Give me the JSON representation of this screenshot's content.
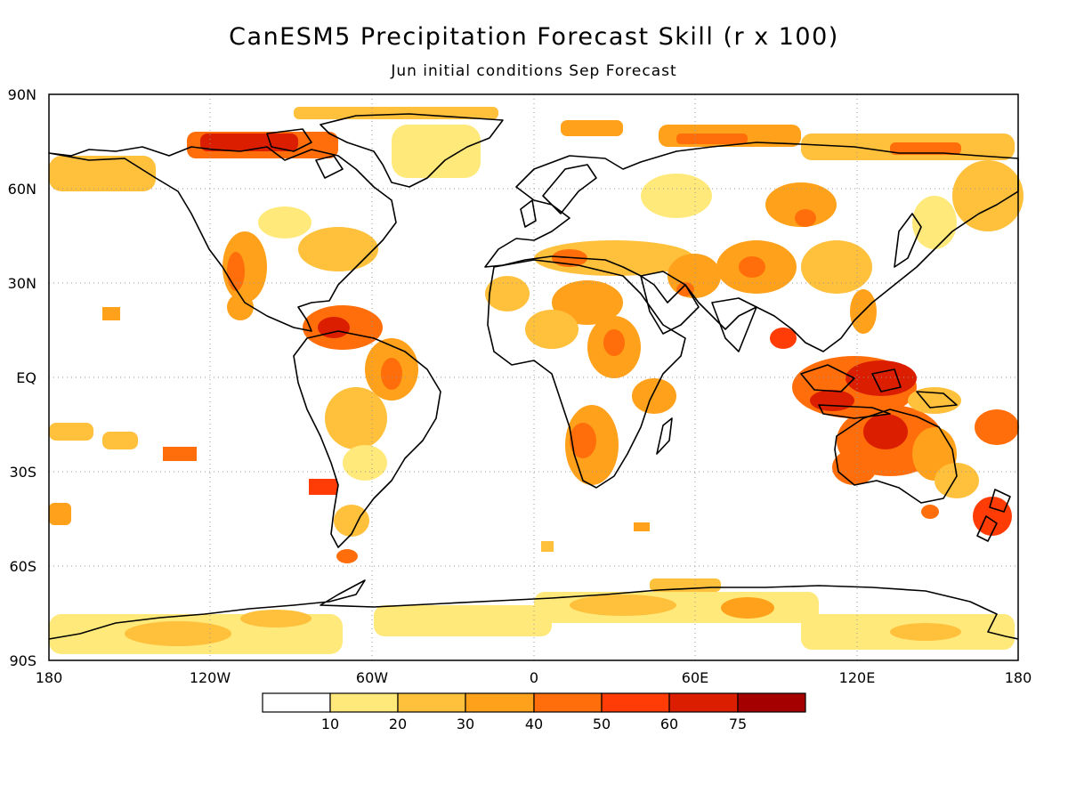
{
  "title": "CanESM5 Precipitation Forecast Skill (r x 100)",
  "subtitle": "Jun initial conditions  Sep Forecast",
  "map": {
    "lat_labels": [
      "90N",
      "60N",
      "30N",
      "EQ",
      "30S",
      "60S",
      "90S"
    ],
    "lon_labels": [
      "180",
      "120W",
      "60W",
      "0",
      "60E",
      "120E",
      "180"
    ],
    "grid": "dotted"
  },
  "colorbar": {
    "levels": [
      "10",
      "20",
      "30",
      "40",
      "50",
      "60",
      "75"
    ],
    "colors": [
      "#ffffff",
      "#ffe97a",
      "#ffc03c",
      "#ffa11a",
      "#ff6e0a",
      "#ff3c05",
      "#dc1e00",
      "#a50000"
    ]
  }
}
